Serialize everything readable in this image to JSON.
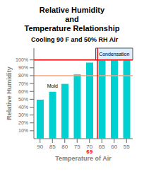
{
  "chart_data": {
    "type": "bar",
    "title": "Relative Humidity\nand\nTemperature Relationship",
    "subtitle": "Cooling 90 F and 50% RH Air",
    "categories": [
      "90",
      "85",
      "80",
      "75",
      "70",
      "65",
      "60",
      "55"
    ],
    "values": [
      50,
      60,
      70,
      82,
      97,
      100,
      100,
      100
    ],
    "color": "#00D0D0",
    "xlabel": "Temperature of Air",
    "ylabel": "Relative Humidity",
    "ylim": [
      0,
      115
    ],
    "yticks": [
      {
        "value": 10,
        "label": "10%"
      },
      {
        "value": 20,
        "label": "20%"
      },
      {
        "value": 30,
        "label": "30%"
      },
      {
        "value": 40,
        "label": "40%"
      },
      {
        "value": 50,
        "label": "50%"
      },
      {
        "value": 60,
        "label": "60%"
      },
      {
        "value": 70,
        "label": "70%"
      },
      {
        "value": 80,
        "label": "80%"
      },
      {
        "value": 90,
        "label": "90%"
      },
      {
        "value": 100,
        "label": "100%"
      }
    ],
    "grid": false,
    "hlines": [
      {
        "value": 100,
        "color": "#FF0000"
      },
      {
        "value": 80,
        "color": "#FFA07A"
      }
    ],
    "vline": {
      "after": "70",
      "color": "red"
    },
    "annotations": [
      {
        "text": "Mold",
        "x": "85"
      },
      {
        "text": "69",
        "x": "70",
        "color": "red"
      }
    ],
    "highlight": {
      "categories": [
        "65",
        "60",
        "55"
      ],
      "label": "Condensation",
      "color": "#DDEEFF"
    }
  }
}
